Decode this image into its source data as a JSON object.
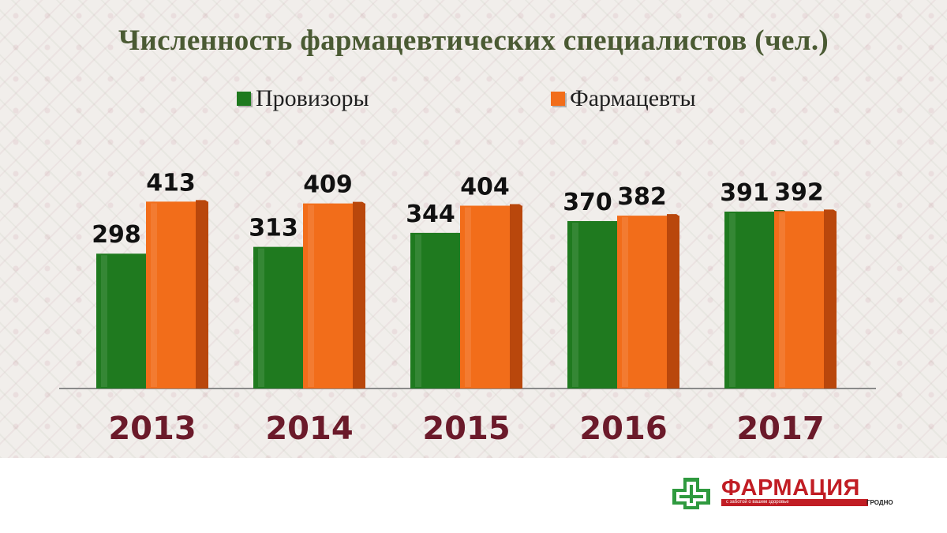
{
  "chart_data": {
    "type": "bar",
    "title": "Численность фармацевтических специалистов (чел.)",
    "categories": [
      "2013",
      "2014",
      "2015",
      "2016",
      "2017"
    ],
    "series": [
      {
        "name": "Провизоры",
        "values": [
          298,
          313,
          344,
          370,
          391
        ],
        "color": "#1f7a1f"
      },
      {
        "name": "Фармацевты",
        "values": [
          413,
          409,
          404,
          382,
          392
        ],
        "color": "#f26d1a"
      }
    ],
    "ylim": [
      0,
      450
    ],
    "grid": false,
    "legend_position": "top"
  },
  "colors": {
    "title": "#4a5a33",
    "category_label": "#6b1a2a",
    "value_label": "#111111",
    "series_1_side": "#175e17",
    "series_2_side": "#b9470c"
  },
  "logo": {
    "name": "ФАРМАЦИЯ",
    "tagline": "с заботой о вашем здоровье",
    "city": "ГРОДНО",
    "icon": "green-cross-icon"
  }
}
